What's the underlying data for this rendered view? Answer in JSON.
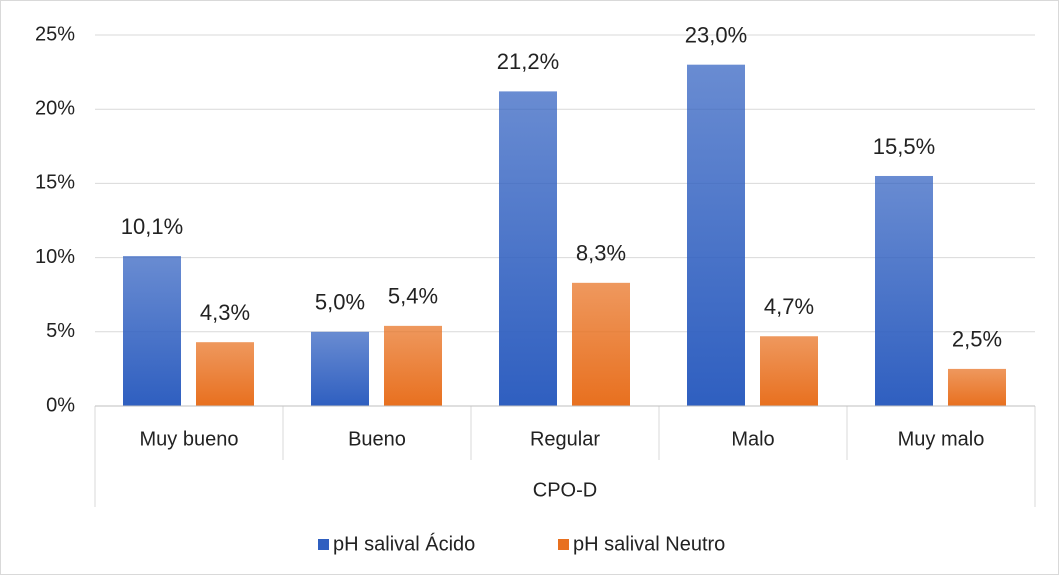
{
  "chart_data": {
    "type": "bar",
    "categories": [
      "Muy bueno",
      "Bueno",
      "Regular",
      "Malo",
      "Muy malo"
    ],
    "xlabel": "CPO-D",
    "series": [
      {
        "name": "pH salival Ácido",
        "color": "#2f5fc0",
        "values": [
          10.1,
          5.0,
          21.2,
          23.0,
          15.5
        ],
        "value_labels": [
          "10,1%",
          "5,0%",
          "21,2%",
          "23,0%",
          "15,5%"
        ]
      },
      {
        "name": "pH salival Neutro",
        "color": "#e8701f",
        "values": [
          4.3,
          5.4,
          8.3,
          4.7,
          2.5
        ],
        "value_labels": [
          "4,3%",
          "5,4%",
          "8,3%",
          "4,7%",
          "2,5%"
        ]
      }
    ],
    "ylim": [
      0,
      25
    ],
    "yticks": [
      {
        "value": 0,
        "label": "0%"
      },
      {
        "value": 5,
        "label": "5%"
      },
      {
        "value": 10,
        "label": "10%"
      },
      {
        "value": 15,
        "label": "15%"
      },
      {
        "value": 20,
        "label": "20%"
      },
      {
        "value": 25,
        "label": "25%"
      }
    ],
    "grid": true,
    "legend": "bottom"
  }
}
